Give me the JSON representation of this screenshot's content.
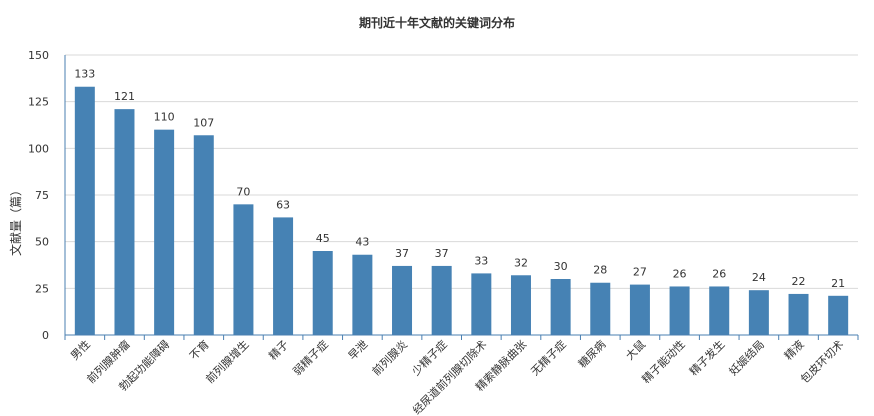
{
  "chart_data": {
    "type": "bar",
    "title": "期刊近十年文献的关键词分布",
    "ylabel": "文献量（篇）",
    "xlabel": "",
    "ylim": [
      0,
      150
    ],
    "yticks": [
      0,
      25,
      50,
      75,
      100,
      125,
      150
    ],
    "grid": true,
    "bar_color": "#4682b4",
    "categories": [
      "男性",
      "前列腺肿瘤",
      "勃起功能障碍",
      "不育",
      "前列腺增生",
      "精子",
      "弱精子症",
      "早泄",
      "前列腺炎",
      "少精子症",
      "经尿道前列腺切除术",
      "精索静脉曲张",
      "无精子症",
      "糖尿病",
      "大鼠",
      "精子能动性",
      "精子发生",
      "妊娠结局",
      "精液",
      "包皮环切术"
    ],
    "values": [
      133,
      121,
      110,
      107,
      70,
      63,
      45,
      43,
      37,
      37,
      33,
      32,
      30,
      28,
      27,
      26,
      26,
      24,
      22,
      21
    ]
  }
}
